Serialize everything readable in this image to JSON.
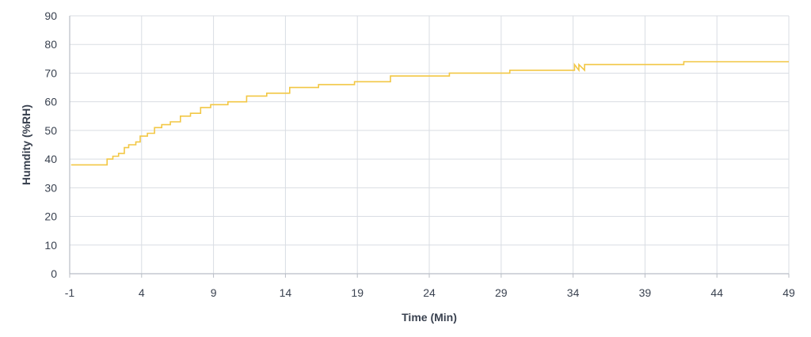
{
  "chart_data": {
    "type": "line",
    "title": "",
    "xlabel": "Time (Min)",
    "ylabel": "Humdity (%RH)",
    "xlim": [
      -1,
      49
    ],
    "ylim": [
      0,
      90
    ],
    "x_ticks": [
      "-1",
      "4",
      "9",
      "14",
      "19",
      "24",
      "29",
      "34",
      "39",
      "44",
      "49"
    ],
    "y_ticks": [
      "0",
      "10",
      "20",
      "30",
      "40",
      "50",
      "60",
      "70",
      "80",
      "90"
    ],
    "grid": true,
    "legend": "none",
    "series": [
      {
        "color": "#f2c744",
        "interpolation": "step",
        "points": [
          [
            -0.9,
            38
          ],
          [
            1.6,
            38
          ],
          [
            1.6,
            40
          ],
          [
            2.0,
            40
          ],
          [
            2.0,
            41
          ],
          [
            2.4,
            41
          ],
          [
            2.4,
            42
          ],
          [
            2.8,
            42
          ],
          [
            2.8,
            44
          ],
          [
            3.1,
            44
          ],
          [
            3.1,
            45
          ],
          [
            3.6,
            45
          ],
          [
            3.6,
            46
          ],
          [
            3.9,
            46
          ],
          [
            3.9,
            48
          ],
          [
            4.4,
            48
          ],
          [
            4.4,
            49
          ],
          [
            4.9,
            49
          ],
          [
            4.9,
            51
          ],
          [
            5.4,
            51
          ],
          [
            5.4,
            52
          ],
          [
            6.0,
            52
          ],
          [
            6.0,
            53
          ],
          [
            6.7,
            53
          ],
          [
            6.7,
            55
          ],
          [
            7.4,
            55
          ],
          [
            7.4,
            56
          ],
          [
            8.1,
            56
          ],
          [
            8.1,
            58
          ],
          [
            8.8,
            58
          ],
          [
            8.8,
            59
          ],
          [
            10.0,
            59
          ],
          [
            10.0,
            60
          ],
          [
            11.3,
            60
          ],
          [
            11.3,
            62
          ],
          [
            12.7,
            62
          ],
          [
            12.7,
            63
          ],
          [
            14.3,
            63
          ],
          [
            14.3,
            65
          ],
          [
            16.3,
            65
          ],
          [
            16.3,
            66
          ],
          [
            18.8,
            66
          ],
          [
            18.8,
            67
          ],
          [
            21.3,
            67
          ],
          [
            21.3,
            69
          ],
          [
            25.4,
            69
          ],
          [
            25.4,
            70
          ],
          [
            29.6,
            70
          ],
          [
            29.6,
            71
          ],
          [
            34.1,
            71
          ],
          [
            34.1,
            73
          ],
          [
            34.4,
            71
          ],
          [
            34.4,
            73
          ],
          [
            34.8,
            71
          ],
          [
            34.8,
            73
          ],
          [
            41.7,
            73
          ],
          [
            41.7,
            74
          ],
          [
            49.0,
            74
          ]
        ]
      }
    ]
  }
}
